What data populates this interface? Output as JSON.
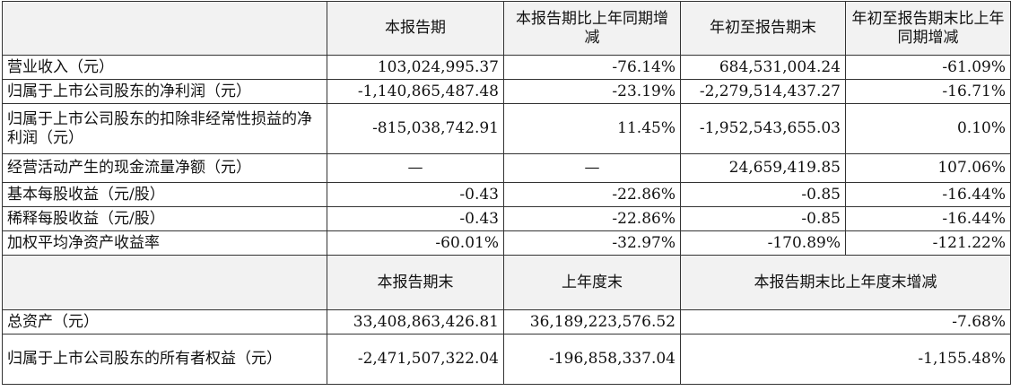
{
  "header1": [
    "",
    "本报告期",
    "本报告期比上年同期增减",
    "年初至报告期末",
    "年初至报告期末比上年同期增减"
  ],
  "rows1": [
    {
      "label": "营业收入（元）",
      "values": [
        "103,024,995.37",
        "-76.14%",
        "684,531,004.24",
        "-61.09%"
      ]
    },
    {
      "label": "归属于上市公司股东的净利润（元）",
      "values": [
        "-1,140,865,487.48",
        "-23.19%",
        "-2,279,514,437.27",
        "-16.71%"
      ]
    },
    {
      "label": "归属于上市公司股东的扣除非经常性损益的净利润（元）",
      "values": [
        "-815,038,742.91",
        "11.45%",
        "-1,952,543,655.03",
        "0.10%"
      ]
    },
    {
      "label": "经营活动产生的现金流量净额（元）",
      "values": [
        "—",
        "—",
        "24,659,419.85",
        "107.06%"
      ]
    },
    {
      "label": "基本每股收益（元/股）",
      "values": [
        "-0.43",
        "-22.86%",
        "-0.85",
        "-16.44%"
      ]
    },
    {
      "label": "稀释每股收益（元/股）",
      "values": [
        "-0.43",
        "-22.86%",
        "-0.85",
        "-16.44%"
      ]
    },
    {
      "label": "加权平均净资产收益率",
      "values": [
        "-60.01%",
        "-32.97%",
        "-170.89%",
        "-121.22%"
      ]
    }
  ],
  "header2": [
    "",
    "本报告期末",
    "上年度末",
    "本报告期末比上年度末增减"
  ],
  "rows2": [
    {
      "label": "总资产（元）",
      "values": [
        "33,408,863,426.81",
        "36,189,223,576.52",
        "-7.68%"
      ]
    },
    {
      "label": "归属于上市公司股东的所有者权益（元）",
      "values": [
        "-2,471,507,322.04",
        "-196,858,337.04",
        "-1,155.48%"
      ]
    }
  ]
}
